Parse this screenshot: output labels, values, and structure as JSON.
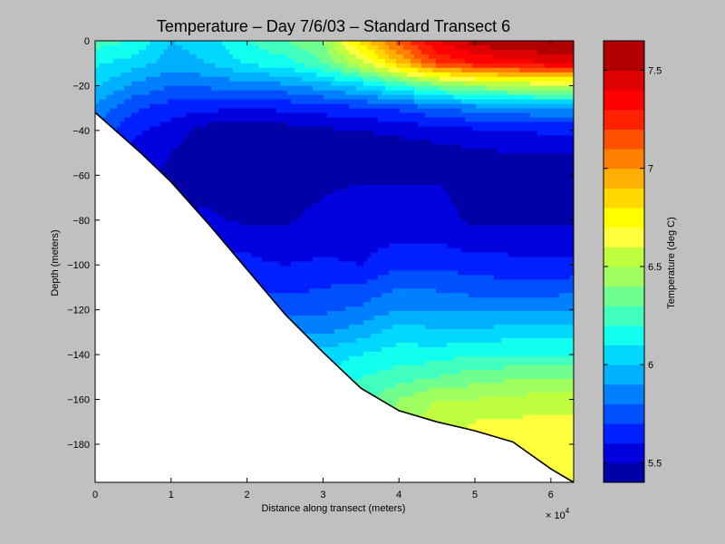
{
  "chart_data": {
    "type": "contour",
    "title": "Temperature – Day 7/6/03 – Standard Transect 6",
    "xlabel": "Distance along transect (meters)",
    "ylabel": "Depth (meters)",
    "x_exponent_label": "× 10",
    "x_exponent_power": "4",
    "xlim": [
      0,
      6.3
    ],
    "ylim": [
      -197,
      0
    ],
    "x_ticks": [
      0,
      1,
      2,
      3,
      4,
      5,
      6
    ],
    "y_ticks": [
      0,
      -20,
      -40,
      -60,
      -80,
      -100,
      -120,
      -140,
      -160,
      -180
    ],
    "x_tick_labels": [
      "0",
      "1",
      "2",
      "3",
      "4",
      "5",
      "6"
    ],
    "y_tick_labels": [
      "0",
      "−20",
      "−40",
      "−60",
      "−80",
      "−100",
      "−120",
      "−140",
      "−160",
      "−180"
    ],
    "colorbar": {
      "label": "Temperature (deg C)",
      "range": [
        5.4,
        7.65
      ],
      "ticks": [
        5.5,
        6,
        6.5,
        7,
        7.5
      ],
      "tick_labels": [
        "5.5",
        "6",
        "6.5",
        "7",
        "7.5"
      ],
      "levels": [
        5.4,
        5.5,
        5.6,
        5.7,
        5.8,
        5.9,
        6.0,
        6.1,
        6.2,
        6.3,
        6.4,
        6.5,
        6.6,
        6.7,
        6.8,
        6.9,
        7.0,
        7.1,
        7.2,
        7.3,
        7.4,
        7.5,
        7.65
      ],
      "colors": [
        "#0000a6",
        "#0000df",
        "#0020ff",
        "#0050ff",
        "#0080ff",
        "#00b0ff",
        "#00d8ff",
        "#10ffef",
        "#40ffbf",
        "#70ff8f",
        "#a0ff60",
        "#c0ff40",
        "#ffff40",
        "#ffff00",
        "#ffd800",
        "#ffb000",
        "#ff8000",
        "#ff5000",
        "#ff2000",
        "#ff0000",
        "#df0000",
        "#b00000"
      ]
    },
    "bottom_profile": {
      "x": [
        0,
        0.6,
        1.0,
        1.5,
        2.0,
        2.5,
        3.0,
        3.5,
        4.0,
        4.5,
        5.0,
        5.5,
        6.0,
        6.3
      ],
      "depth": [
        -32,
        -50,
        -63,
        -82,
        -102,
        -122,
        -139,
        -155,
        -165,
        -170,
        -174,
        -179,
        -191,
        -197
      ]
    },
    "temperature_profiles": {
      "x": [
        0,
        0.5,
        1.0,
        1.5,
        2.0,
        2.5,
        3.0,
        3.5,
        4.0,
        4.5,
        5.0,
        5.5,
        6.0,
        6.3
      ],
      "depth": [
        0,
        -10,
        -20,
        -30,
        -40,
        -50,
        -60,
        -70,
        -80,
        -90,
        -100,
        -110,
        -120,
        -130,
        -140,
        -150,
        -160,
        -170,
        -180,
        -190,
        -197
      ],
      "values": [
        [
          6.25,
          6.12,
          6.02,
          5.88,
          5.78,
          5.72,
          5.68,
          5.68,
          5.7,
          5.72,
          5.75,
          5.78,
          5.82,
          5.88,
          5.92,
          5.98,
          6.02,
          6.05,
          6.08,
          6.1,
          6.12
        ],
        [
          6.2,
          6.05,
          5.88,
          5.72,
          5.62,
          5.58,
          5.52,
          5.52,
          5.55,
          5.6,
          5.68,
          5.72,
          5.8,
          5.85,
          5.92,
          5.98,
          6.05,
          6.08,
          6.1,
          6.12,
          6.12
        ],
        [
          6.0,
          5.95,
          5.8,
          5.65,
          5.55,
          5.5,
          5.48,
          5.48,
          5.52,
          5.58,
          5.65,
          5.7,
          5.75,
          5.82,
          5.88,
          5.95,
          6.02,
          6.05,
          6.08,
          6.1,
          6.1
        ],
        [
          6.05,
          6.0,
          5.82,
          5.62,
          5.45,
          5.42,
          5.44,
          5.48,
          5.52,
          5.58,
          5.62,
          5.68,
          5.75,
          5.82,
          5.9,
          5.95,
          6.0,
          6.05,
          6.08,
          6.1,
          6.1
        ],
        [
          6.2,
          6.12,
          5.85,
          5.62,
          5.44,
          5.42,
          5.44,
          5.46,
          5.48,
          5.58,
          5.62,
          5.68,
          5.75,
          5.82,
          5.9,
          5.95,
          6.0,
          6.05,
          6.08,
          6.1,
          6.1
        ],
        [
          6.3,
          6.15,
          5.88,
          5.62,
          5.45,
          5.43,
          5.44,
          5.45,
          5.48,
          5.54,
          5.6,
          5.66,
          5.78,
          5.9,
          5.95,
          6.0,
          6.05,
          6.08,
          6.1,
          6.12,
          6.12
        ],
        [
          6.4,
          6.3,
          5.95,
          5.65,
          5.48,
          5.44,
          5.46,
          5.5,
          5.55,
          5.56,
          5.62,
          5.7,
          5.78,
          5.88,
          6.05,
          6.1,
          6.12,
          6.15,
          6.15,
          6.15,
          6.15
        ],
        [
          6.85,
          6.55,
          6.05,
          5.68,
          5.5,
          5.45,
          5.46,
          5.55,
          5.55,
          5.57,
          5.6,
          5.72,
          5.82,
          5.95,
          6.1,
          6.2,
          6.25,
          6.28,
          6.3,
          6.3,
          6.3
        ],
        [
          7.15,
          6.9,
          6.2,
          5.72,
          5.52,
          5.45,
          5.48,
          5.52,
          5.56,
          5.6,
          5.68,
          5.8,
          5.9,
          6.05,
          6.15,
          6.25,
          6.4,
          6.45,
          6.45,
          6.45,
          6.45
        ],
        [
          7.4,
          7.2,
          6.35,
          5.8,
          5.55,
          5.46,
          5.49,
          5.52,
          5.54,
          5.6,
          5.68,
          5.78,
          5.9,
          6.02,
          6.15,
          6.3,
          6.5,
          6.55,
          6.55,
          6.55,
          6.55
        ],
        [
          7.55,
          7.3,
          6.45,
          5.85,
          5.58,
          5.48,
          5.47,
          5.46,
          5.48,
          5.55,
          5.65,
          5.75,
          5.88,
          6.02,
          6.2,
          6.35,
          6.5,
          6.6,
          6.65,
          6.65,
          6.65
        ],
        [
          7.62,
          7.35,
          6.5,
          5.88,
          5.6,
          5.5,
          5.46,
          5.45,
          5.48,
          5.55,
          5.64,
          5.74,
          5.9,
          6.05,
          6.2,
          6.38,
          6.52,
          6.62,
          6.65,
          6.65,
          6.65
        ],
        [
          7.62,
          7.4,
          6.55,
          5.9,
          5.62,
          5.5,
          5.46,
          5.45,
          5.48,
          5.55,
          5.64,
          5.74,
          5.9,
          6.05,
          6.2,
          6.4,
          6.55,
          6.62,
          6.65,
          6.62,
          6.6
        ],
        [
          7.6,
          7.4,
          6.55,
          5.9,
          5.62,
          5.5,
          5.46,
          5.45,
          5.48,
          5.55,
          5.64,
          5.75,
          5.9,
          6.05,
          6.2,
          6.4,
          6.55,
          6.62,
          6.65,
          6.62,
          6.6
        ]
      ]
    }
  }
}
